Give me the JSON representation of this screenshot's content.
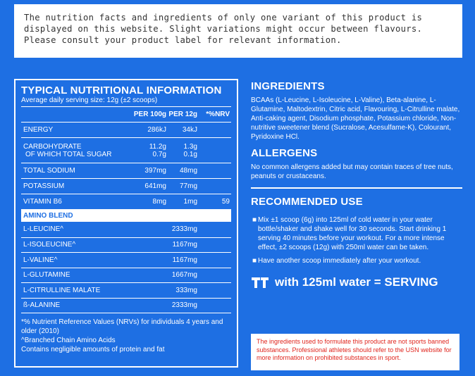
{
  "notice": {
    "lines": [
      "The nutrition facts and ingredients of only one variant of this product is",
      "displayed on this website. Slight variations might occur between flavours.",
      "Please consult your product label for relevant information."
    ]
  },
  "nutrition": {
    "title": "TYPICAL NUTRITIONAL INFORMATION",
    "subtitle": "Average daily serving size: 12g (±2 scoops)",
    "headers": [
      "PER 100g",
      "PER 12g",
      "*%NRV"
    ],
    "rows": [
      {
        "name": "ENERGY",
        "per100": "286kJ",
        "per12": "34kJ",
        "nrv": ""
      },
      {
        "name": "CARBOHYDRATE",
        "name2": "OF WHICH TOTAL SUGAR",
        "per100": "11.2g",
        "per100b": "0.7g",
        "per12": "1.3g",
        "per12b": "0.1g",
        "nrv": ""
      },
      {
        "name": "TOTAL SODIUM",
        "per100": "397mg",
        "per12": "48mg",
        "nrv": ""
      },
      {
        "name": "POTASSIUM",
        "per100": "641mg",
        "per12": "77mg",
        "nrv": ""
      },
      {
        "name": "VITAMIN B6",
        "per100": "8mg",
        "per12": "1mg",
        "nrv": "59"
      }
    ],
    "amino_title": "AMINO BLEND",
    "amino": [
      {
        "name": "L-LEUCINE^",
        "value": "2333mg"
      },
      {
        "name": "L-ISOLEUCINE^",
        "value": "1167mg"
      },
      {
        "name": "L-VALINE^",
        "value": "1167mg"
      },
      {
        "name": "L-GLUTAMINE",
        "value": "1667mg"
      },
      {
        "name": "L-CITRULLINE MALATE",
        "value": "333mg"
      },
      {
        "name": "ß-ALANINE",
        "value": "2333mg"
      }
    ],
    "footnotes": [
      "*% Nutrient Reference Values (NRVs) for individuals 4 years and older (2010)",
      "^Branched Chain Amino Acids",
      "Contains negligible amounts of protein and fat"
    ]
  },
  "ingredients": {
    "title": "INGREDIENTS",
    "text": "BCAAs (L-Leucine, L-Isoleucine, L-Valine), Beta-alanine, L-Glutamine, Maltodextrin, Citric acid, Flavouring, L-Citrulline malate, Anti-caking agent, Disodium phosphate, Potassium chloride, Non-nutritive sweetener blend (Sucralose, Acesulfame-K), Colourant, Pyridoxine HCl."
  },
  "allergens": {
    "title": "ALLERGENS",
    "text": "No common allergens added but may contain traces of tree nuts, peanuts or crustaceans."
  },
  "usage": {
    "title": "RECOMMENDED USE",
    "bullets": [
      "Mix ±1 scoop (6g) into 125ml of cold water in your water bottle/shaker and shake well for 30 seconds. Start drinking 1 serving 40 minutes before your workout. For a more intense effect, ±2 scoops (12g) with 250ml water can be taken.",
      "Have another scoop immediately after your workout."
    ],
    "serving_text": "with 125ml water = SERVING"
  },
  "warning": {
    "text": "The ingredients used to formulate this product are not sports banned substances. Professional athletes should refer to the USN website for more information on prohibited substances in sport."
  },
  "colors": {
    "background": "#1e6fe3",
    "warning_text": "#e0241c"
  }
}
